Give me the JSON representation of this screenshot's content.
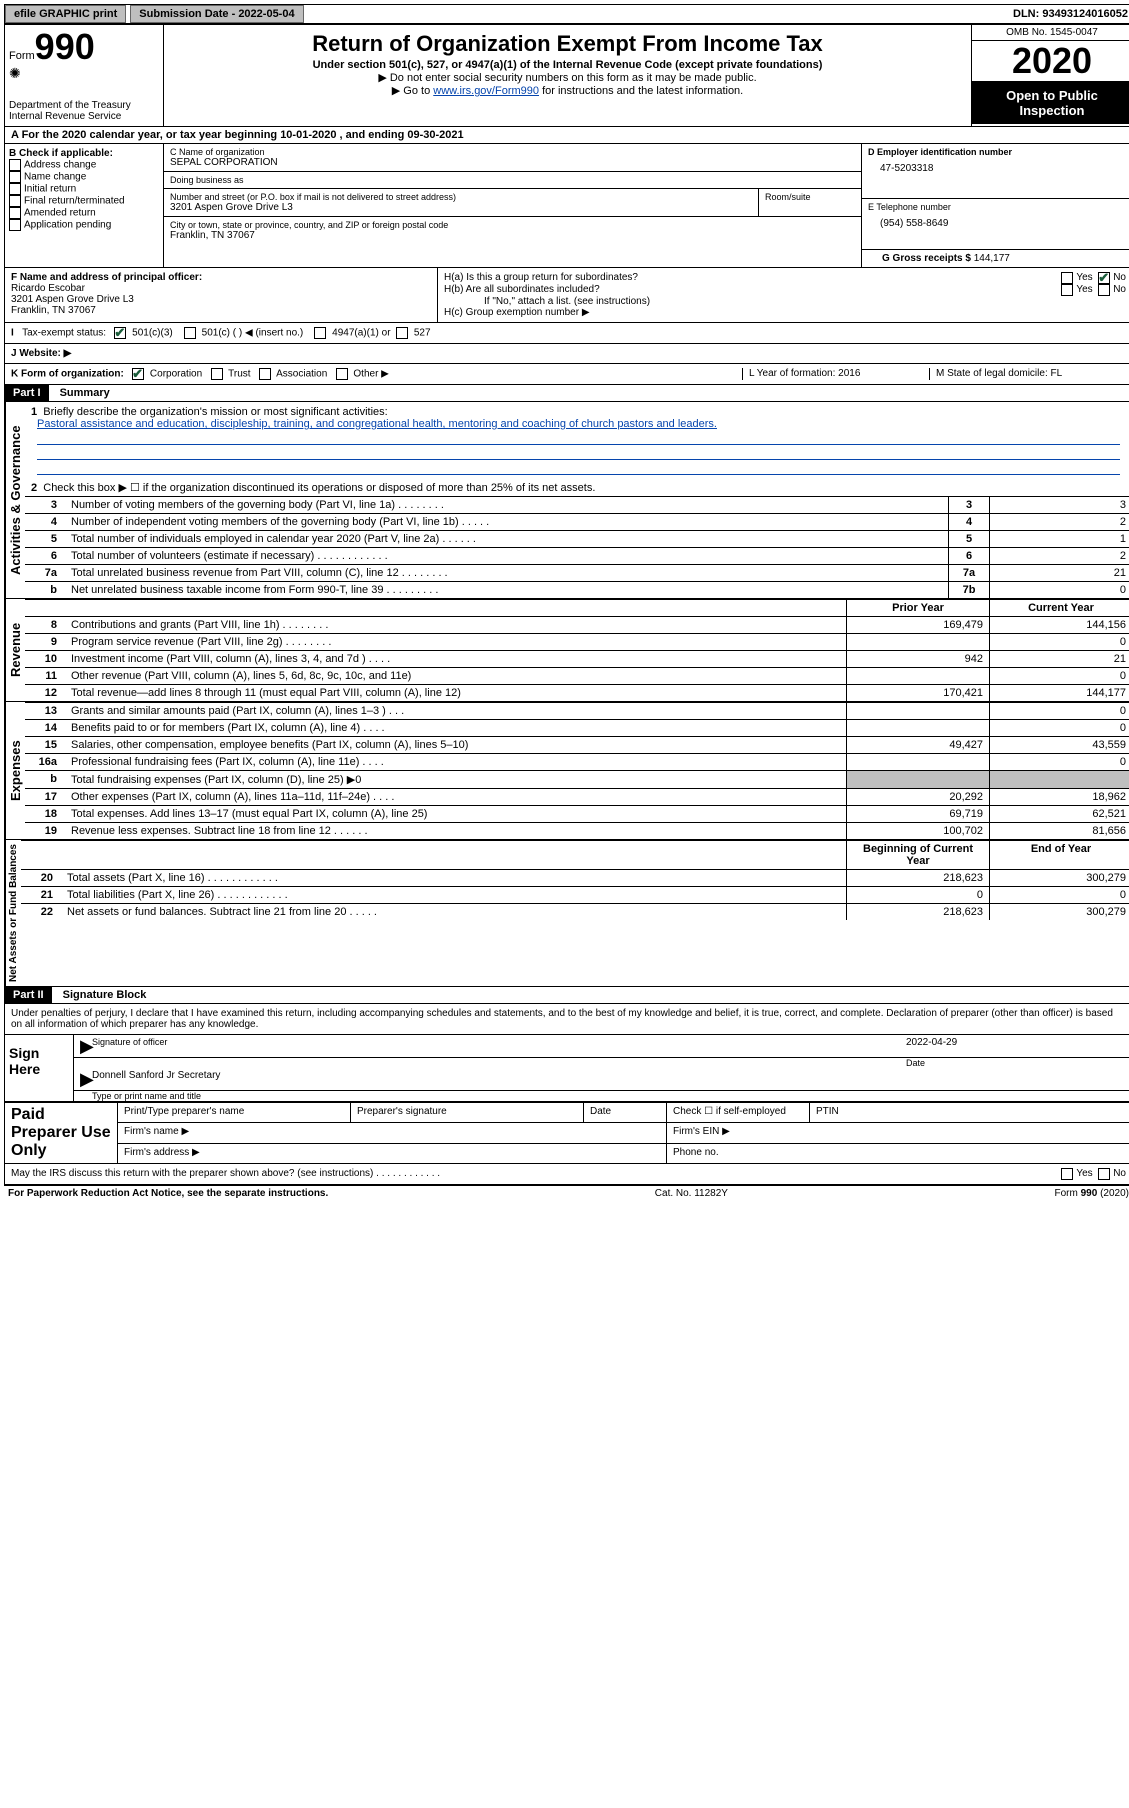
{
  "topbar": {
    "efile": "efile GRAPHIC print",
    "submission_label": "Submission Date - 2022-05-04",
    "dln": "DLN: 93493124016052"
  },
  "header": {
    "form_prefix": "Form",
    "form_number": "990",
    "dept": "Department of the Treasury\nInternal Revenue Service",
    "title": "Return of Organization Exempt From Income Tax",
    "subtitle": "Under section 501(c), 527, or 4947(a)(1) of the Internal Revenue Code (except private foundations)",
    "note1": "▶ Do not enter social security numbers on this form as it may be made public.",
    "note2_pre": "▶ Go to ",
    "note2_link": "www.irs.gov/Form990",
    "note2_post": " for instructions and the latest information.",
    "omb": "OMB No. 1545-0047",
    "year": "2020",
    "open": "Open to Public Inspection"
  },
  "row_a": "A For the 2020 calendar year, or tax year beginning 10-01-2020    , and ending 09-30-2021",
  "b": {
    "label": "B Check if applicable:",
    "items": [
      "Address change",
      "Name change",
      "Initial return",
      "Final return/terminated",
      "Amended return",
      "Application pending"
    ]
  },
  "c": {
    "name_label": "C Name of organization",
    "name": "SEPAL CORPORATION",
    "dba_label": "Doing business as",
    "dba": "",
    "street_label": "Number and street (or P.O. box if mail is not delivered to street address)",
    "room_label": "Room/suite",
    "street": "3201 Aspen Grove Drive L3",
    "city_label": "City or town, state or province, country, and ZIP or foreign postal code",
    "city": "Franklin, TN  37067"
  },
  "d": {
    "label": "D Employer identification number",
    "val": "47-5203318"
  },
  "e": {
    "label": "E Telephone number",
    "val": "(954) 558-8649"
  },
  "g": {
    "label": "G Gross receipts $",
    "val": "144,177"
  },
  "f": {
    "label": "F Name and address of principal officer:",
    "name": "Ricardo Escobar",
    "street": "3201 Aspen Grove Drive L3",
    "city": "Franklin, TN  37067"
  },
  "h": {
    "a": "H(a)  Is this a group return for subordinates?",
    "b": "H(b)  Are all subordinates included?",
    "b_note": "If \"No,\" attach a list. (see instructions)",
    "c": "H(c)  Group exemption number ▶"
  },
  "i": {
    "label": "Tax-exempt status:",
    "opts": [
      "501(c)(3)",
      "501(c) (  ) ◀ (insert no.)",
      "4947(a)(1) or",
      "527"
    ]
  },
  "j": {
    "label": "J   Website: ▶",
    "val": ""
  },
  "k": {
    "label": "K Form of organization:",
    "opts": [
      "Corporation",
      "Trust",
      "Association",
      "Other ▶"
    ],
    "l": "L Year of formation: 2016",
    "m": "M State of legal domicile: FL"
  },
  "part1": {
    "hdr": "Part I",
    "title": "Summary",
    "line1_label": "Briefly describe the organization's mission or most significant activities:",
    "mission": "Pastoral assistance and education, discipleship, training, and congregational health, mentoring and coaching of church pastors and leaders.",
    "line2": "Check this box ▶ ☐  if the organization discontinued its operations or disposed of more than 25% of its net assets.",
    "gov_lines": [
      {
        "n": "3",
        "t": "Number of voting members of the governing body (Part VI, line 1a)   .    .    .    .    .    .    .    .",
        "b": "3",
        "v": "3"
      },
      {
        "n": "4",
        "t": "Number of independent voting members of the governing body (Part VI, line 1b)   .    .    .    .    .",
        "b": "4",
        "v": "2"
      },
      {
        "n": "5",
        "t": "Total number of individuals employed in calendar year 2020 (Part V, line 2a)   .    .    .    .    .    .",
        "b": "5",
        "v": "1"
      },
      {
        "n": "6",
        "t": "Total number of volunteers (estimate if necessary)   .    .    .    .    .    .    .    .    .    .    .    .",
        "b": "6",
        "v": "2"
      },
      {
        "n": "7a",
        "t": "Total unrelated business revenue from Part VIII, column (C), line 12    .    .    .    .    .    .    .    .",
        "b": "7a",
        "v": "21"
      },
      {
        "n": "b",
        "t": "Net unrelated business taxable income from Form 990-T, line 39   .    .    .    .    .    .    .    .    .",
        "b": "7b",
        "v": "0"
      }
    ],
    "col_prior": "Prior Year",
    "col_current": "Current Year",
    "rev_lines": [
      {
        "n": "8",
        "t": "Contributions and grants (Part VIII, line 1h)    .    .    .    .    .    .    .    .",
        "p": "169,479",
        "c": "144,156"
      },
      {
        "n": "9",
        "t": "Program service revenue (Part VIII, line 2g)    .    .    .    .    .    .    .    .",
        "p": "",
        "c": "0"
      },
      {
        "n": "10",
        "t": "Investment income (Part VIII, column (A), lines 3, 4, and 7d )    .    .    .    .",
        "p": "942",
        "c": "21"
      },
      {
        "n": "11",
        "t": "Other revenue (Part VIII, column (A), lines 5, 6d, 8c, 9c, 10c, and 11e)",
        "p": "",
        "c": "0"
      },
      {
        "n": "12",
        "t": "Total revenue—add lines 8 through 11 (must equal Part VIII, column (A), line 12)",
        "p": "170,421",
        "c": "144,177"
      }
    ],
    "exp_lines": [
      {
        "n": "13",
        "t": "Grants and similar amounts paid (Part IX, column (A), lines 1–3 )    .    .    .",
        "p": "",
        "c": "0"
      },
      {
        "n": "14",
        "t": "Benefits paid to or for members (Part IX, column (A), line 4)    .    .    .    .",
        "p": "",
        "c": "0"
      },
      {
        "n": "15",
        "t": "Salaries, other compensation, employee benefits (Part IX, column (A), lines 5–10)",
        "p": "49,427",
        "c": "43,559"
      },
      {
        "n": "16a",
        "t": "Professional fundraising fees (Part IX, column (A), line 11e)    .    .    .    .",
        "p": "",
        "c": "0"
      },
      {
        "n": "b",
        "t": "Total fundraising expenses (Part IX, column (D), line 25) ▶0",
        "p": "grey",
        "c": "grey"
      },
      {
        "n": "17",
        "t": "Other expenses (Part IX, column (A), lines 11a–11d, 11f–24e)    .    .    .    .",
        "p": "20,292",
        "c": "18,962"
      },
      {
        "n": "18",
        "t": "Total expenses. Add lines 13–17 (must equal Part IX, column (A), line 25)",
        "p": "69,719",
        "c": "62,521"
      },
      {
        "n": "19",
        "t": "Revenue less expenses. Subtract line 18 from line 12    .    .    .    .    .    .",
        "p": "100,702",
        "c": "81,656"
      }
    ],
    "col_begin": "Beginning of Current Year",
    "col_end": "End of Year",
    "na_lines": [
      {
        "n": "20",
        "t": "Total assets (Part X, line 16)    .    .    .    .    .    .    .    .    .    .    .    .",
        "p": "218,623",
        "c": "300,279"
      },
      {
        "n": "21",
        "t": "Total liabilities (Part X, line 26)    .    .    .    .    .    .    .    .    .    .    .    .",
        "p": "0",
        "c": "0"
      },
      {
        "n": "22",
        "t": "Net assets or fund balances. Subtract line 21 from line 20    .    .    .    .    .",
        "p": "218,623",
        "c": "300,279"
      }
    ],
    "vlabels": {
      "gov": "Activities & Governance",
      "rev": "Revenue",
      "exp": "Expenses",
      "na": "Net Assets or Fund Balances"
    }
  },
  "part2": {
    "hdr": "Part II",
    "title": "Signature Block",
    "decl": "Under penalties of perjury, I declare that I have examined this return, including accompanying schedules and statements, and to the best of my knowledge and belief, it is true, correct, and complete. Declaration of preparer (other than officer) is based on all information of which preparer has any knowledge.",
    "sign_here": "Sign Here",
    "sig_officer_label": "Signature of officer",
    "date_label": "Date",
    "date_val": "2022-04-29",
    "name_val": "Donnell Sanford Jr Secretary",
    "name_label": "Type or print name and title",
    "paid": "Paid Preparer Use Only",
    "p_name": "Print/Type preparer's name",
    "p_sig": "Preparer's signature",
    "p_date": "Date",
    "p_check": "Check ☐ if self-employed",
    "p_ptin": "PTIN",
    "p_firm": "Firm's name    ▶",
    "p_ein": "Firm's EIN ▶",
    "p_addr": "Firm's address ▶",
    "p_phone": "Phone no.",
    "discuss": "May the IRS discuss this return with the preparer shown above? (see instructions)    .    .    .    .    .    .    .    .    .    .    .    .",
    "yes": "Yes",
    "no": "No"
  },
  "footer": {
    "left": "For Paperwork Reduction Act Notice, see the separate instructions.",
    "mid": "Cat. No. 11282Y",
    "right": "Form 990 (2020)"
  }
}
